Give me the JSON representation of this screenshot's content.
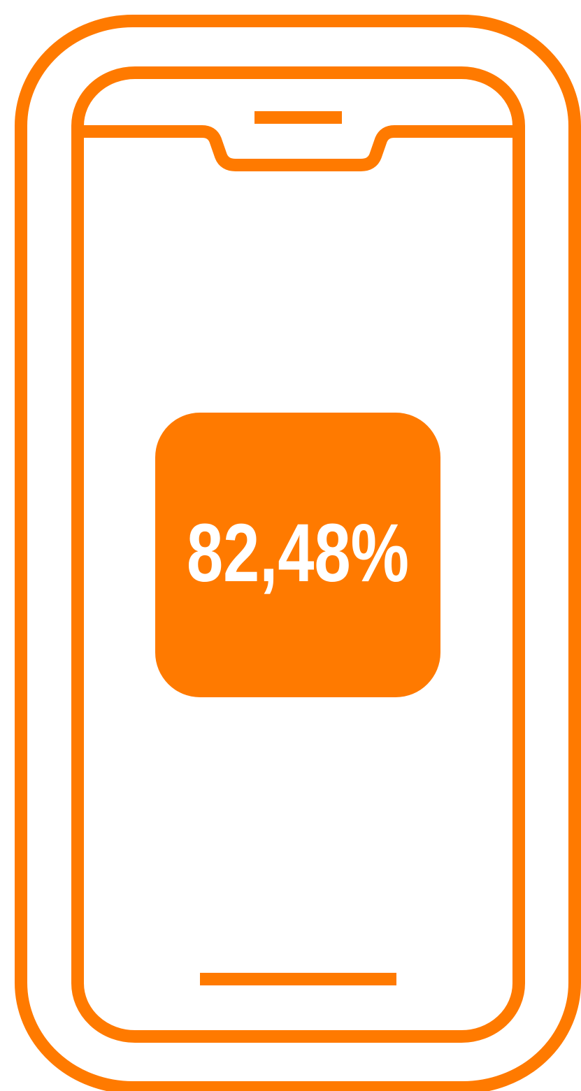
{
  "label": "82,48%"
}
